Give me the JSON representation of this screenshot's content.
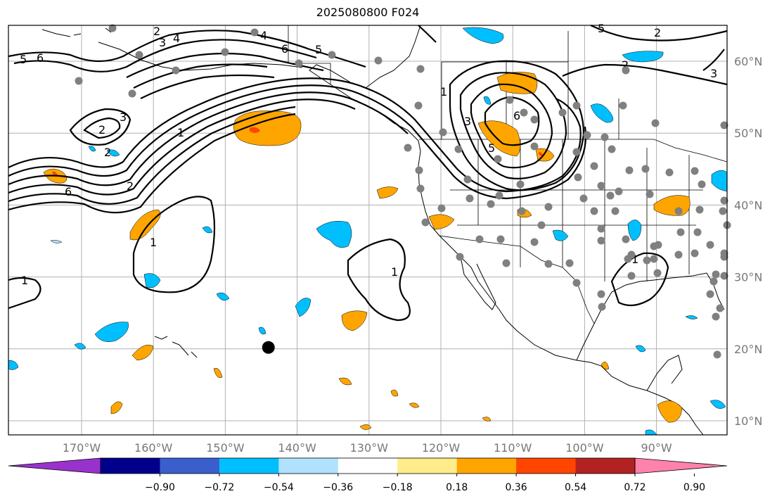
{
  "title": "2025080800 F024",
  "lat_labels": [
    {
      "label": "60°N",
      "lat": 60
    },
    {
      "label": "50°N",
      "lat": 50
    },
    {
      "label": "40°N",
      "lat": 40
    },
    {
      "label": "30°N",
      "lat": 30
    },
    {
      "label": "20°N",
      "lat": 20
    },
    {
      "label": "10°N",
      "lat": 10
    }
  ],
  "lon_labels": [
    {
      "label": "170°W",
      "lon": -170
    },
    {
      "label": "160°W",
      "lon": -160
    },
    {
      "label": "150°W",
      "lon": -150
    },
    {
      "label": "140°W",
      "lon": -140
    },
    {
      "label": "130°W",
      "lon": -130
    },
    {
      "label": "120°W",
      "lon": -120
    },
    {
      "label": "110°W",
      "lon": -110
    },
    {
      "label": "100°W",
      "lon": -100
    },
    {
      "label": "90°W",
      "lon": -90
    }
  ],
  "colorbar": {
    "colors": [
      "#9932cc",
      "#00008b",
      "#3a5fcd",
      "#00bfff",
      "#b0e2ff",
      "#ffffff",
      "#ffec8b",
      "#ffa500",
      "#ff4500",
      "#b22222",
      "#ff82ab"
    ],
    "ticks": [
      "−0.90",
      "−0.72",
      "−0.54",
      "−0.36",
      "−0.18",
      "0.18",
      "0.36",
      "0.54",
      "0.72",
      "0.90"
    ]
  },
  "contour_labels": [
    "1",
    "2",
    "3",
    "4",
    "5",
    "6"
  ],
  "marker": {
    "lon": -144,
    "lat": 20.2
  }
}
